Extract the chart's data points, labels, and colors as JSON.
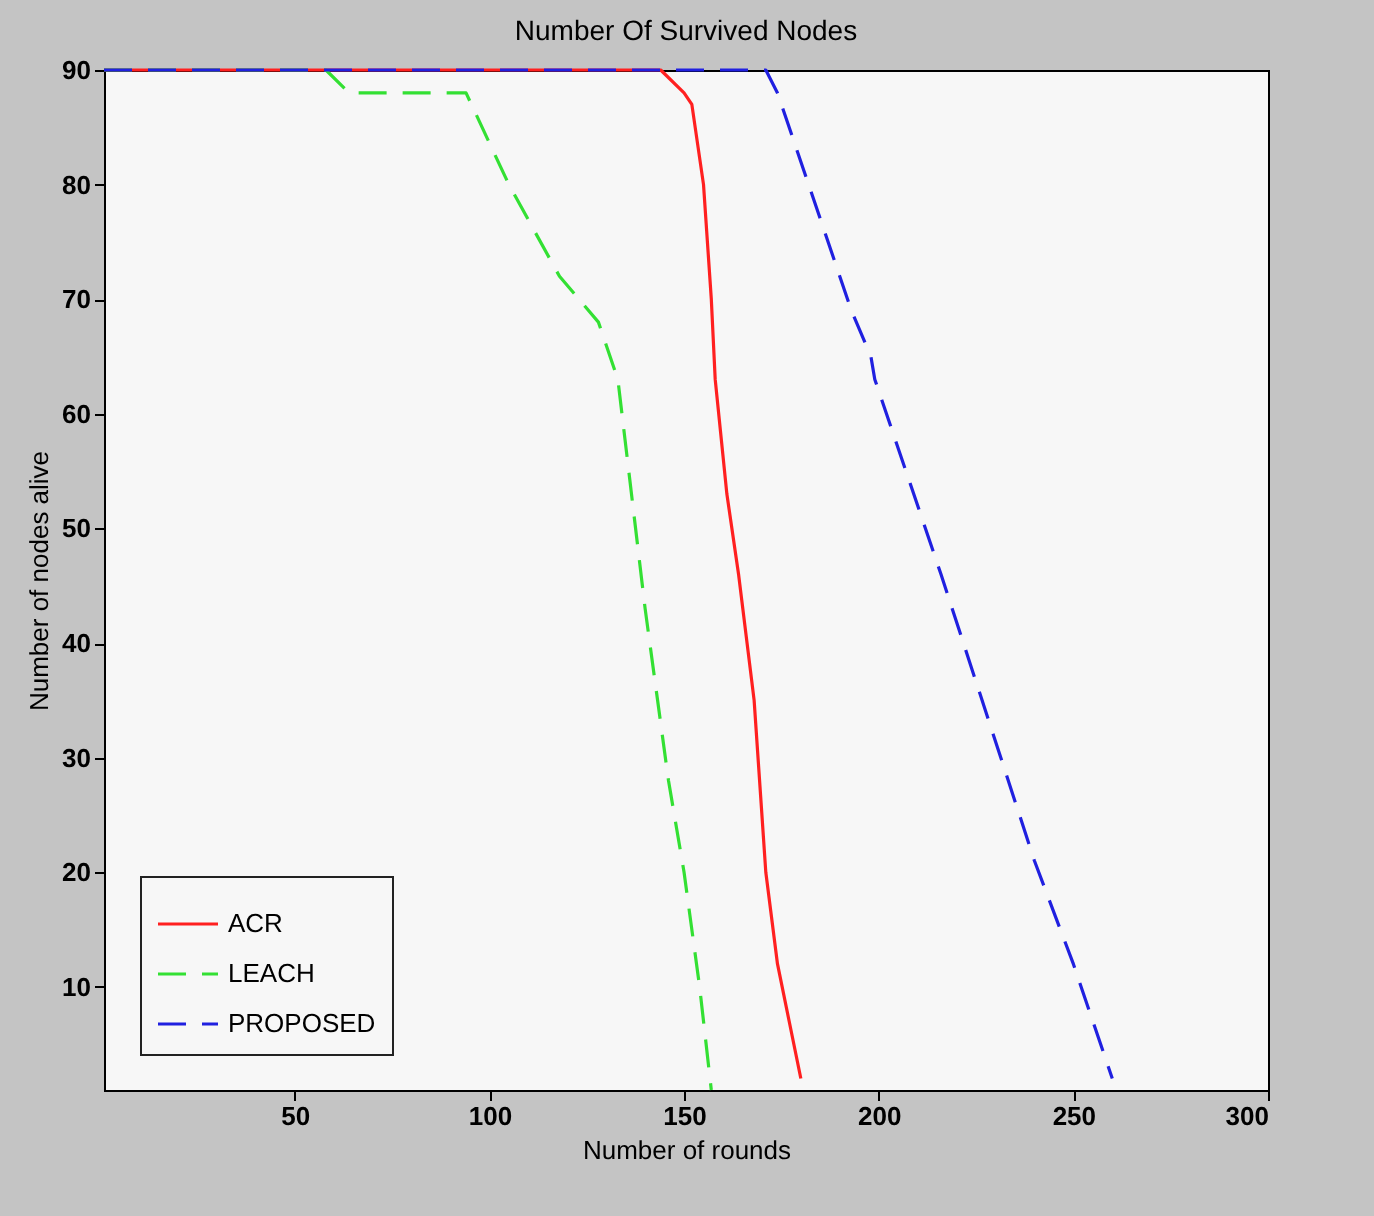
{
  "chart_data": {
    "type": "line",
    "title": "Number Of Survived Nodes",
    "xlabel": "Number of rounds",
    "ylabel": "Number of nodes alive",
    "xlim": [
      1,
      300
    ],
    "ylim": [
      1,
      90
    ],
    "xticks": [
      50,
      100,
      150,
      200,
      250,
      300
    ],
    "yticks": [
      10,
      20,
      30,
      40,
      50,
      60,
      70,
      80,
      90
    ],
    "grid": false,
    "legend": "bottom left",
    "marker": "none",
    "series": [
      {
        "name": "ACR",
        "color": "#ff2020",
        "line_style": "solid",
        "x": [
          1,
          144,
          150,
          152,
          155,
          157,
          158,
          161,
          164,
          168,
          171,
          174,
          177,
          180
        ],
        "values": [
          90,
          90,
          88,
          87,
          80,
          70,
          63,
          53,
          46,
          35,
          20,
          12,
          7,
          2
        ]
      },
      {
        "name": "LEACH",
        "color": "#33e033",
        "line_style": "dashed",
        "x": [
          1,
          58,
          64,
          94,
          105,
          118,
          128,
          133,
          140,
          146,
          150,
          154,
          157
        ],
        "values": [
          90,
          90,
          88,
          88,
          80,
          72,
          68,
          63,
          43,
          28,
          20,
          10,
          1
        ]
      },
      {
        "name": "PROPOSED",
        "color": "#2020e0",
        "line_style": "dashed",
        "x": [
          1,
          171,
          174,
          193,
          198,
          199,
          216,
          240,
          250,
          260
        ],
        "values": [
          90,
          90,
          88,
          69,
          65,
          63,
          46,
          21,
          12,
          2
        ]
      }
    ]
  }
}
